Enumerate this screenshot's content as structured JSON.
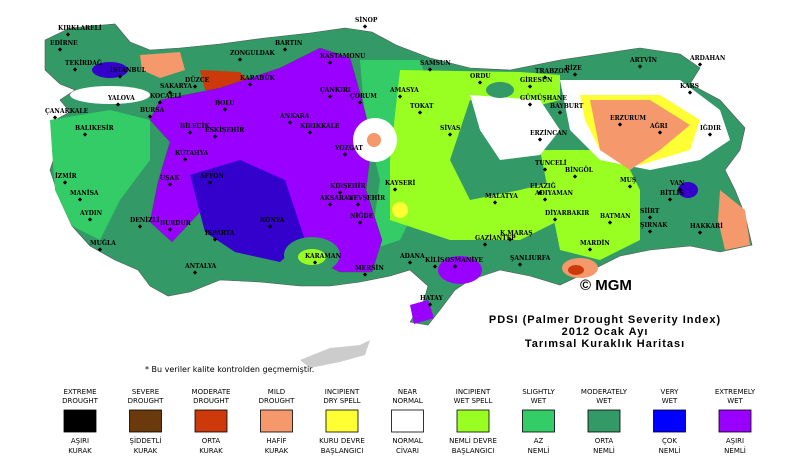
{
  "map": {
    "title": [
      "PDSI (Palmer Drought Severity Index)",
      "2012 Ocak Ayı",
      "Tarımsal Kuraklık Haritası"
    ],
    "copyright": "© MGM",
    "note": "* Bu veriler kalite kontrolden geçmemiştir.",
    "cities": [
      "KIRKLARELİ",
      "EDİRNE",
      "TEKİRDAĞ",
      "İSTANBUL",
      "KOCAELİ",
      "SAKARYA",
      "DÜZCE",
      "BOLU",
      "ZONGULDAK",
      "BARTIN",
      "KARABÜK",
      "KASTAMONU",
      "SİNOP",
      "SAMSUN",
      "ORDU",
      "GİRESUN",
      "TRABZON",
      "RİZE",
      "ARTVİN",
      "ARDAHAN",
      "KARS",
      "IĞDIR",
      "AĞRI",
      "ERZURUM",
      "BAYBURT",
      "GÜMÜŞHANE",
      "ERZİNCAN",
      "TUNCELİ",
      "BİNGÖL",
      "MUŞ",
      "BİTLİS",
      "VAN",
      "HAKKARİ",
      "SİİRT",
      "BATMAN",
      "ŞIRNAK",
      "MARDİN",
      "DİYARBAKIR",
      "ELAZIĞ",
      "MALATYA",
      "ADIYAMAN",
      "ŞANLIURFA",
      "GAZİANTEP",
      "KİLİS",
      "HATAY",
      "OSMANİYE",
      "ADANA",
      "MERSİN",
      "KARAMAN",
      "KONYA",
      "ANTALYA",
      "ISPARTA",
      "BURDUR",
      "MUĞLA",
      "AYDIN",
      "DENİZLİ",
      "İZMİR",
      "MANİSA",
      "BALIKESİR",
      "ÇANAKKALE",
      "BURSA",
      "YALOVA",
      "BİLECİK",
      "KÜTAHYA",
      "UŞAK",
      "AFYON",
      "ESKİŞEHİR",
      "ANKARA",
      "ÇANKIRI",
      "ÇORUM",
      "AMASYA",
      "TOKAT",
      "SİVAS",
      "YOZGAT",
      "KIRIKKALE",
      "KIRŞEHİR",
      "NEVŞEHİR",
      "AKSARAY",
      "NİĞDE",
      "KAYSERİ",
      "K.MARAŞ"
    ],
    "legend": {
      "items": [
        {
          "label_en": [
            "EXTREME",
            "DROUGHT"
          ],
          "color": "#000000",
          "label_tr": [
            "AŞIRI",
            "KURAK"
          ]
        },
        {
          "label_en": [
            "SEVERE",
            "DROUGHT"
          ],
          "color": "#6b3a0c",
          "label_tr": [
            "ŞİDDETLİ",
            "KURAK"
          ]
        },
        {
          "label_en": [
            "MODERATE",
            "DROUGHT"
          ],
          "color": "#cc3a0c",
          "label_tr": [
            "ORTA",
            "KURAK"
          ]
        },
        {
          "label_en": [
            "MILD",
            "DROUGHT"
          ],
          "color": "#f5986c",
          "label_tr": [
            "HAFİF",
            "KURAK"
          ]
        },
        {
          "label_en": [
            "INCIPIENT",
            "DRY SPELL"
          ],
          "color": "#ffff33",
          "label_tr": [
            "KURU DEVRE",
            "BAŞLANGICI"
          ]
        },
        {
          "label_en": [
            "NEAR",
            "NORMAL"
          ],
          "color": "#ffffff",
          "label_tr": [
            "NORMAL",
            "CİVARI"
          ]
        },
        {
          "label_en": [
            "INCIPIENT",
            "WET SPELL"
          ],
          "color": "#99ff22",
          "label_tr": [
            "NEMLİ DEVRE",
            "BAŞLANGICI"
          ]
        },
        {
          "label_en": [
            "SLIGHTLY",
            "WET"
          ],
          "color": "#33cc66",
          "label_tr": [
            "AZ",
            "NEMLİ"
          ]
        },
        {
          "label_en": [
            "MODERATELY",
            "WET"
          ],
          "color": "#339966",
          "label_tr": [
            "ORTA",
            "NEMLİ"
          ]
        },
        {
          "label_en": [
            "VERY",
            "WET"
          ],
          "color": "#0000ff",
          "label_tr": [
            "ÇOK",
            "NEMLİ"
          ]
        },
        {
          "label_en": [
            "EXTREMELY",
            "WET"
          ],
          "color": "#9900ff",
          "label_tr": [
            "AŞIRI",
            "NEMLİ"
          ]
        }
      ]
    }
  }
}
